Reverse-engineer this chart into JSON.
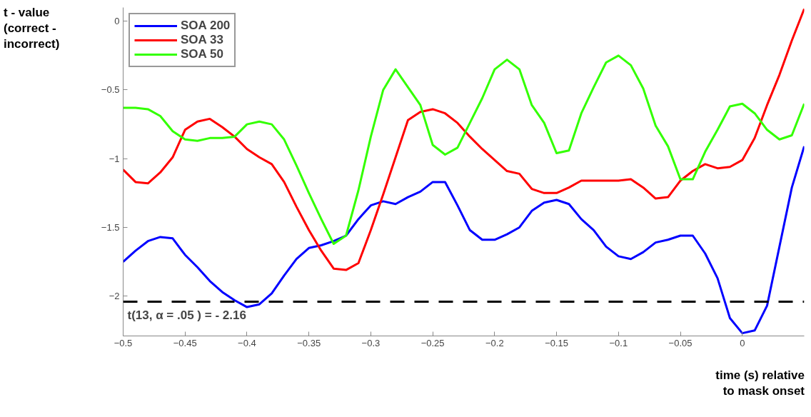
{
  "chart_data": {
    "type": "line",
    "xlabel": "time (s) relative\nto mask onset",
    "ylabel": "t - value\n(correct -\nincorrect)",
    "x": [
      -0.5,
      -0.49,
      -0.48,
      -0.47,
      -0.46,
      -0.45,
      -0.44,
      -0.43,
      -0.42,
      -0.41,
      -0.4,
      -0.39,
      -0.38,
      -0.37,
      -0.36,
      -0.35,
      -0.34,
      -0.33,
      -0.32,
      -0.31,
      -0.3,
      -0.29,
      -0.28,
      -0.27,
      -0.26,
      -0.25,
      -0.24,
      -0.23,
      -0.22,
      -0.21,
      -0.2,
      -0.19,
      -0.18,
      -0.17,
      -0.16,
      -0.15,
      -0.14,
      -0.13,
      -0.12,
      -0.11,
      -0.1,
      -0.09,
      -0.08,
      -0.07,
      -0.06,
      -0.05,
      -0.04,
      -0.03,
      -0.02,
      -0.01,
      0,
      0.01,
      0.02,
      0.03,
      0.04,
      0.05
    ],
    "series": [
      {
        "name": "SOA 200",
        "color": "#0000ff",
        "values": [
          -1.75,
          -1.67,
          -1.6,
          -1.57,
          -1.58,
          -1.7,
          -1.79,
          -1.89,
          -1.97,
          -2.03,
          -2.08,
          -2.06,
          -1.98,
          -1.85,
          -1.73,
          -1.65,
          -1.63,
          -1.6,
          -1.56,
          -1.44,
          -1.34,
          -1.31,
          -1.33,
          -1.28,
          -1.24,
          -1.17,
          -1.17,
          -1.34,
          -1.52,
          -1.59,
          -1.59,
          -1.55,
          -1.5,
          -1.38,
          -1.32,
          -1.3,
          -1.33,
          -1.44,
          -1.52,
          -1.64,
          -1.71,
          -1.73,
          -1.68,
          -1.61,
          -1.59,
          -1.56,
          -1.56,
          -1.69,
          -1.87,
          -2.16,
          -2.27,
          -2.25,
          -2.07,
          -1.64,
          -1.21,
          -0.91
        ]
      },
      {
        "name": "SOA 33",
        "color": "#ff0000",
        "values": [
          -1.08,
          -1.17,
          -1.18,
          -1.1,
          -0.99,
          -0.79,
          -0.73,
          -0.71,
          -0.77,
          -0.84,
          -0.93,
          -0.99,
          -1.04,
          -1.17,
          -1.35,
          -1.52,
          -1.67,
          -1.8,
          -1.81,
          -1.76,
          -1.52,
          -1.26,
          -0.99,
          -0.72,
          -0.66,
          -0.64,
          -0.67,
          -0.74,
          -0.84,
          -0.93,
          -1.01,
          -1.09,
          -1.11,
          -1.22,
          -1.25,
          -1.25,
          -1.21,
          -1.16,
          -1.16,
          -1.16,
          -1.16,
          -1.15,
          -1.21,
          -1.29,
          -1.28,
          -1.16,
          -1.09,
          -1.04,
          -1.07,
          -1.06,
          -1.01,
          -0.85,
          -0.61,
          -0.39,
          -0.14,
          0.09
        ]
      },
      {
        "name": "SOA 50",
        "color": "#33ff00",
        "values": [
          -0.63,
          -0.63,
          -0.64,
          -0.69,
          -0.8,
          -0.86,
          -0.87,
          -0.85,
          -0.85,
          -0.84,
          -0.75,
          -0.73,
          -0.75,
          -0.86,
          -1.05,
          -1.25,
          -1.44,
          -1.62,
          -1.56,
          -1.23,
          -0.84,
          -0.5,
          -0.35,
          -0.48,
          -0.61,
          -0.9,
          -0.97,
          -0.92,
          -0.74,
          -0.56,
          -0.35,
          -0.28,
          -0.35,
          -0.61,
          -0.74,
          -0.96,
          -0.94,
          -0.67,
          -0.48,
          -0.3,
          -0.25,
          -0.32,
          -0.49,
          -0.76,
          -0.91,
          -1.15,
          -1.15,
          -0.95,
          -0.79,
          -0.62,
          -0.6,
          -0.67,
          -0.79,
          -0.86,
          -0.83,
          -0.6
        ]
      }
    ],
    "xlim": [
      -0.5,
      0.05
    ],
    "ylim": [
      -2.29,
      0.1
    ],
    "xticks": [
      -0.5,
      -0.45,
      -0.4,
      -0.35,
      -0.3,
      -0.25,
      -0.2,
      -0.15,
      -0.1,
      -0.05,
      0
    ],
    "yticks": [
      -2,
      -1.5,
      -1,
      -0.5,
      0
    ],
    "ref_lines": [
      {
        "axis": "y",
        "value": -2.04,
        "label": "t(13, α = .05 ) =  - 2.16",
        "color": "#000000",
        "line_style": "dashed"
      }
    ],
    "legend": "top left",
    "grid": false,
    "marker": "none",
    "line_style": "solid"
  }
}
